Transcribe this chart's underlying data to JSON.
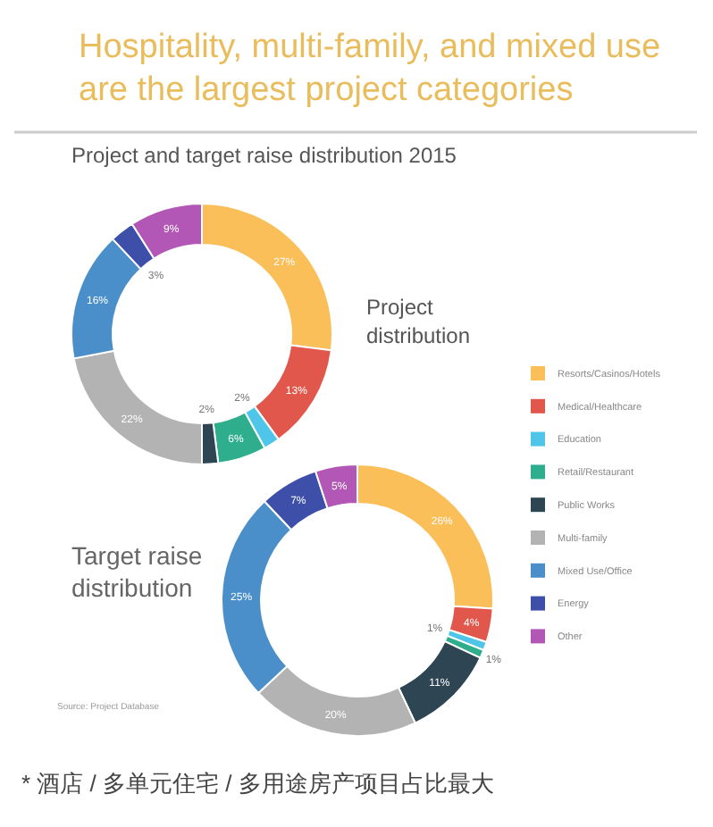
{
  "chart_data": [
    {
      "type": "donut",
      "title": "Hospitality, multi-family, and mixed use\nare the largest project categories",
      "subtitle": "Project and target raise distribution 2015",
      "annotations": [
        "Project\ndistribution"
      ],
      "categories": [
        null,
        null,
        null,
        null,
        null,
        null,
        null,
        null,
        null
      ],
      "values": [
        27,
        13,
        2,
        6,
        2,
        22,
        16,
        3,
        9
      ],
      "value_labels": [
        "27%",
        "13%",
        "2%",
        "6%",
        "2%",
        "22%",
        "16%",
        "3%",
        "9%"
      ],
      "colors": [
        "#fbbf5a",
        "#e2574c",
        "#4fc5ea",
        "#2fae8d",
        "#2e4553",
        "#b3b3b3",
        "#4a8fc9",
        "#3d4fa8",
        "#b257b5"
      ]
    },
    {
      "type": "donut",
      "annotations": [
        "Target raise\ndistribution",
        "Source: Project Database",
        "*  酒店 / 多单元住宅 / 多用途房产项目占比最大"
      ],
      "legend": "right",
      "categories": [
        "Resorts/Casinos/Hotels",
        "Medical/Healthcare",
        "Education",
        "Retail/Restaurant",
        "Public Works",
        "Multi-family",
        "Mixed Use/Office",
        "Energy",
        "Other"
      ],
      "values": [
        26,
        4,
        1,
        1,
        11,
        20,
        25,
        7,
        5
      ],
      "value_labels": [
        "26%",
        "4%",
        "1%",
        "1%",
        "11%",
        "20%",
        "25%",
        "7%",
        "5%"
      ],
      "colors": [
        "#fbbf5a",
        "#e2574c",
        "#4fc5ea",
        "#2fae8d",
        "#2e4553",
        "#b3b3b3",
        "#4a8fc9",
        "#3d4fa8",
        "#b257b5"
      ]
    }
  ]
}
